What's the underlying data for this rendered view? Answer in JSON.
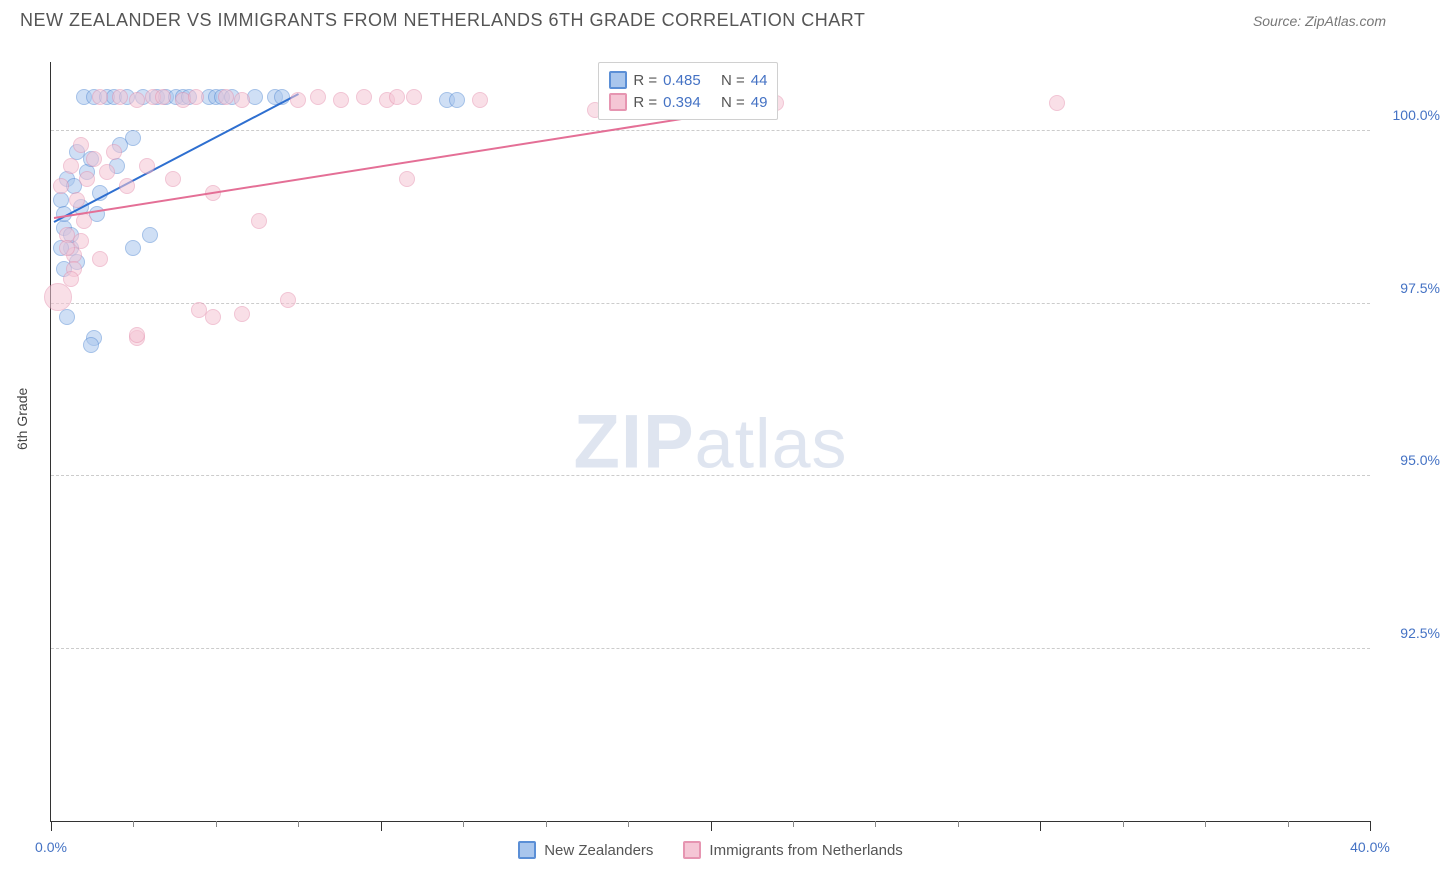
{
  "header": {
    "title": "NEW ZEALANDER VS IMMIGRANTS FROM NETHERLANDS 6TH GRADE CORRELATION CHART",
    "source": "Source: ZipAtlas.com"
  },
  "chart": {
    "type": "scatter",
    "ylabel": "6th Grade",
    "xlim": [
      0,
      40
    ],
    "ylim": [
      90,
      101
    ],
    "x_tick_major_step": 10,
    "x_tick_minor_step": 2.5,
    "x_axis_labels": [
      {
        "value": 0,
        "label": "0.0%"
      },
      {
        "value": 40,
        "label": "40.0%"
      }
    ],
    "y_gridlines": [
      92.5,
      95.0,
      97.5,
      100.0
    ],
    "y_tick_labels": [
      "92.5%",
      "95.0%",
      "97.5%",
      "100.0%"
    ],
    "background_color": "#ffffff",
    "grid_color": "#cccccc",
    "axis_color": "#333333",
    "tick_label_color": "#4472c4",
    "watermark": {
      "text_bold": "ZIP",
      "text_light": "atlas"
    },
    "series": [
      {
        "name": "New Zealanders",
        "fill_color": "#a9c6ed",
        "stroke_color": "#5b8fd6",
        "fill_opacity": 0.55,
        "marker_radius": 8,
        "trend_color": "#2e6fd0",
        "trend": {
          "x1": 0.1,
          "y1": 98.7,
          "x2": 7.5,
          "y2": 100.55
        },
        "stats": {
          "R": "0.485",
          "N": "44"
        },
        "points": [
          {
            "x": 0.3,
            "y": 99.0
          },
          {
            "x": 0.4,
            "y": 98.6
          },
          {
            "x": 0.5,
            "y": 99.3
          },
          {
            "x": 0.6,
            "y": 98.3
          },
          {
            "x": 0.7,
            "y": 99.2
          },
          {
            "x": 0.8,
            "y": 99.7
          },
          {
            "x": 0.9,
            "y": 98.9
          },
          {
            "x": 1.0,
            "y": 100.5
          },
          {
            "x": 1.1,
            "y": 99.4
          },
          {
            "x": 1.2,
            "y": 99.6
          },
          {
            "x": 1.3,
            "y": 100.5
          },
          {
            "x": 1.4,
            "y": 98.8
          },
          {
            "x": 1.5,
            "y": 99.1
          },
          {
            "x": 1.7,
            "y": 100.5
          },
          {
            "x": 1.9,
            "y": 100.5
          },
          {
            "x": 2.0,
            "y": 99.5
          },
          {
            "x": 2.1,
            "y": 99.8
          },
          {
            "x": 2.3,
            "y": 100.5
          },
          {
            "x": 2.5,
            "y": 99.9
          },
          {
            "x": 2.8,
            "y": 100.5
          },
          {
            "x": 3.0,
            "y": 98.5
          },
          {
            "x": 3.2,
            "y": 100.5
          },
          {
            "x": 3.5,
            "y": 100.5
          },
          {
            "x": 3.8,
            "y": 100.5
          },
          {
            "x": 4.0,
            "y": 100.5
          },
          {
            "x": 4.2,
            "y": 100.5
          },
          {
            "x": 4.8,
            "y": 100.5
          },
          {
            "x": 5.0,
            "y": 100.5
          },
          {
            "x": 5.2,
            "y": 100.5
          },
          {
            "x": 5.5,
            "y": 100.5
          },
          {
            "x": 6.2,
            "y": 100.5
          },
          {
            "x": 6.8,
            "y": 100.5
          },
          {
            "x": 7.0,
            "y": 100.5
          },
          {
            "x": 12.0,
            "y": 100.45
          },
          {
            "x": 12.3,
            "y": 100.45
          },
          {
            "x": 0.5,
            "y": 97.3
          },
          {
            "x": 1.3,
            "y": 97.0
          },
          {
            "x": 1.2,
            "y": 96.9
          },
          {
            "x": 0.4,
            "y": 98.0
          },
          {
            "x": 0.3,
            "y": 98.3
          },
          {
            "x": 0.6,
            "y": 98.5
          },
          {
            "x": 0.8,
            "y": 98.1
          },
          {
            "x": 2.5,
            "y": 98.3
          },
          {
            "x": 0.4,
            "y": 98.8
          }
        ]
      },
      {
        "name": "Immigrants from Netherlands",
        "fill_color": "#f5c6d5",
        "stroke_color": "#e695b1",
        "fill_opacity": 0.55,
        "marker_radius": 8,
        "trend_color": "#e46f96",
        "trend": {
          "x1": 0.1,
          "y1": 98.75,
          "x2": 22.0,
          "y2": 100.4
        },
        "stats": {
          "R": "0.394",
          "N": "49"
        },
        "points": [
          {
            "x": 0.3,
            "y": 99.2
          },
          {
            "x": 0.5,
            "y": 98.5
          },
          {
            "x": 0.6,
            "y": 99.5
          },
          {
            "x": 0.7,
            "y": 98.2
          },
          {
            "x": 0.8,
            "y": 99.0
          },
          {
            "x": 0.9,
            "y": 99.8
          },
          {
            "x": 1.0,
            "y": 98.7
          },
          {
            "x": 1.1,
            "y": 99.3
          },
          {
            "x": 1.3,
            "y": 99.6
          },
          {
            "x": 1.5,
            "y": 100.5
          },
          {
            "x": 1.7,
            "y": 99.4
          },
          {
            "x": 1.9,
            "y": 99.7
          },
          {
            "x": 2.1,
            "y": 100.5
          },
          {
            "x": 2.3,
            "y": 99.2
          },
          {
            "x": 2.6,
            "y": 100.45
          },
          {
            "x": 2.9,
            "y": 99.5
          },
          {
            "x": 3.1,
            "y": 100.5
          },
          {
            "x": 3.4,
            "y": 100.5
          },
          {
            "x": 3.7,
            "y": 99.3
          },
          {
            "x": 4.0,
            "y": 100.45
          },
          {
            "x": 4.4,
            "y": 100.5
          },
          {
            "x": 4.9,
            "y": 99.1
          },
          {
            "x": 5.3,
            "y": 100.5
          },
          {
            "x": 5.8,
            "y": 100.45
          },
          {
            "x": 6.3,
            "y": 98.7
          },
          {
            "x": 7.5,
            "y": 100.45
          },
          {
            "x": 8.1,
            "y": 100.5
          },
          {
            "x": 8.8,
            "y": 100.45
          },
          {
            "x": 9.5,
            "y": 100.5
          },
          {
            "x": 10.2,
            "y": 100.45
          },
          {
            "x": 10.5,
            "y": 100.5
          },
          {
            "x": 11.0,
            "y": 100.5
          },
          {
            "x": 13.0,
            "y": 100.45
          },
          {
            "x": 16.5,
            "y": 100.3
          },
          {
            "x": 22.0,
            "y": 100.4
          },
          {
            "x": 30.5,
            "y": 100.4
          },
          {
            "x": 0.2,
            "y": 97.6,
            "r": 14
          },
          {
            "x": 2.6,
            "y": 97.0
          },
          {
            "x": 4.5,
            "y": 97.4
          },
          {
            "x": 4.9,
            "y": 97.3
          },
          {
            "x": 5.8,
            "y": 97.35
          },
          {
            "x": 7.2,
            "y": 97.55
          },
          {
            "x": 0.5,
            "y": 98.3
          },
          {
            "x": 0.7,
            "y": 98.0
          },
          {
            "x": 0.9,
            "y": 98.4
          },
          {
            "x": 1.5,
            "y": 98.15
          },
          {
            "x": 2.6,
            "y": 97.05
          },
          {
            "x": 0.6,
            "y": 97.85
          },
          {
            "x": 10.8,
            "y": 99.3
          }
        ]
      }
    ],
    "stats_box": {
      "left_pct": 41.5,
      "top_pct": 0
    },
    "bottom_legend": [
      {
        "label": "New Zealanders",
        "fill": "#a9c6ed",
        "stroke": "#5b8fd6"
      },
      {
        "label": "Immigrants from Netherlands",
        "fill": "#f5c6d5",
        "stroke": "#e695b1"
      }
    ]
  }
}
